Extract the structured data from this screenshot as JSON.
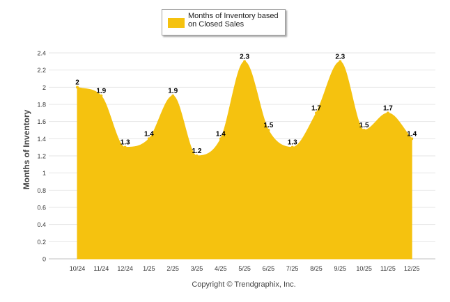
{
  "chart_data": {
    "type": "area",
    "title": "",
    "xlabel": "",
    "ylabel": "Months of Inventory",
    "categories": [
      "10/24",
      "11/24",
      "12/24",
      "1/25",
      "2/25",
      "3/25",
      "4/25",
      "5/25",
      "6/25",
      "7/25",
      "8/25",
      "9/25",
      "10/25",
      "11/25",
      "12/25"
    ],
    "series": [
      {
        "name": "Months of Inventory based on Closed Sales",
        "values": [
          2,
          1.9,
          1.3,
          1.4,
          1.9,
          1.2,
          1.4,
          2.3,
          1.5,
          1.3,
          1.7,
          2.3,
          1.5,
          1.7,
          1.4
        ],
        "color": "#F5C20F"
      }
    ],
    "ylim": [
      0,
      2.4
    ],
    "yticks": [
      "0",
      "0.2",
      "0.4",
      "0.6",
      "0.8",
      "1",
      "1.2",
      "1.4",
      "1.6",
      "1.8",
      "2",
      "2.2",
      "2.4"
    ],
    "grid": true,
    "legend": "top-center",
    "data_labels": true
  },
  "legend": {
    "label": "Months of Inventory based on Closed Sales",
    "color": "#F5C20F"
  },
  "credit": "Copyright © Trendgraphix, Inc."
}
